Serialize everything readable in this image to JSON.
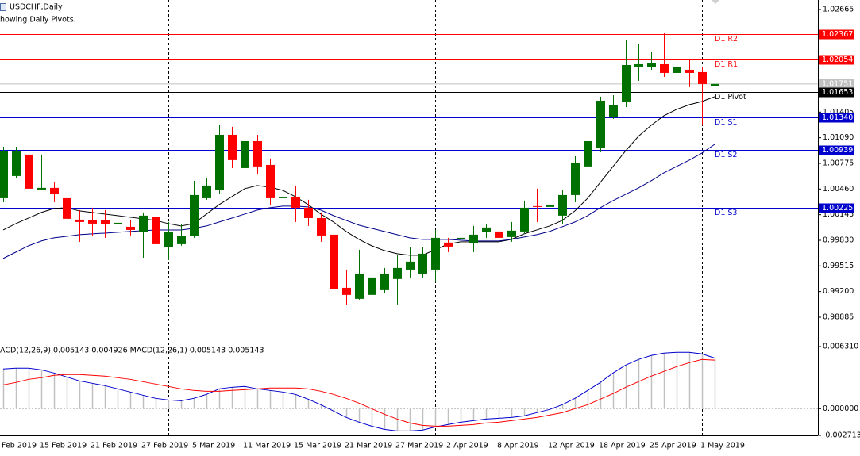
{
  "chart_data": [
    {
      "type": "candlestick",
      "title": "USDCHF,Daily",
      "subtitle": "howing Daily Pivots.",
      "categories": [
        "Feb 2019",
        null,
        null,
        "15 Feb 2019",
        null,
        null,
        null,
        "21 Feb 2019",
        null,
        null,
        null,
        "27 Feb 2019",
        null,
        null,
        null,
        "5 Mar 2019",
        null,
        null,
        null,
        "11 Mar 2019",
        null,
        null,
        null,
        "15 Mar 2019",
        null,
        null,
        null,
        "21 Mar 2019",
        null,
        null,
        null,
        "27 Mar 2019",
        null,
        null,
        null,
        "2 Apr 2019",
        null,
        null,
        null,
        "8 Apr 2019",
        null,
        null,
        null,
        "12 Apr 2019",
        null,
        null,
        null,
        "18 Apr 2019",
        null,
        null,
        null,
        "25 Apr 2019",
        null,
        null,
        null,
        "1 May 2019",
        null
      ],
      "open": [
        1.00347,
        1.0062,
        1.00883,
        1.00454,
        1.00474,
        1.00347,
        1.00084,
        1.00074,
        1.00074,
        1.00026,
        0.99996,
        0.99928,
        1.00113,
        0.99743,
        0.99782,
        0.99879,
        1.00347,
        1.00444,
        1.01126,
        1.00717,
        1.01048,
        1.00756,
        1.00347,
        1.00366,
        1.0023,
        1.00103,
        0.99899,
        0.99246,
        0.9911,
        0.99159,
        0.99217,
        0.99354,
        0.9947,
        0.99412,
        0.9947,
        0.99802,
        0.99841,
        0.99792,
        0.99928,
        0.99938,
        0.9987,
        0.99938,
        1.0025,
        1.0024,
        1.00133,
        1.00386,
        1.00737,
        1.00961,
        1.0134,
        1.01535,
        1.01964,
        1.01954,
        1.01993,
        1.01886,
        1.01925,
        1.01896,
        1.0172
      ],
      "high": [
        1.0098,
        1.0098,
        1.0097,
        1.00883,
        1.00542,
        1.0059,
        1.00201,
        1.0023,
        1.00201,
        1.00172,
        1.00074,
        1.00172,
        1.00201,
        1.00055,
        1.00026,
        1.00561,
        1.0059,
        1.01243,
        1.01224,
        1.01243,
        1.01126,
        1.00834,
        1.00464,
        1.00493,
        1.00328,
        1.00172,
        0.99957,
        0.9947,
        0.99714,
        0.9947,
        0.9949,
        0.99646,
        0.99743,
        0.99743,
        0.99957,
        0.9986,
        0.99938,
        1.00006,
        1.00035,
        1.00016,
        1.00055,
        1.00318,
        1.00464,
        1.00425,
        1.00444,
        1.00863,
        1.01107,
        1.01594,
        1.01613,
        1.02295,
        1.02246,
        1.02149,
        1.02373,
        1.02139,
        1.02042,
        1.01964,
        1.01808
      ],
      "low": [
        1.00298,
        1.0059,
        1.00444,
        1.00444,
        1.00298,
        1.00006,
        0.99811,
        0.99879,
        0.9986,
        0.9986,
        0.99889,
        0.99616,
        0.99256,
        0.99587,
        0.99763,
        0.9986,
        1.00328,
        1.00396,
        1.00717,
        1.00659,
        1.00639,
        1.00269,
        1.00269,
        1.00055,
        1.00006,
        0.99811,
        0.98935,
        0.99032,
        0.991,
        0.991,
        0.99178,
        0.99042,
        0.99373,
        0.99373,
        0.99324,
        0.99685,
        0.99568,
        0.99685,
        0.9986,
        0.99811,
        0.99811,
        0.99909,
        1.00055,
        1.00103,
        1.00035,
        1.00298,
        1.00688,
        1.00912,
        1.01321,
        1.01467,
        1.01789,
        1.01925,
        1.01837,
        1.01808,
        1.01711,
        1.01253,
        1.01711
      ],
      "close": [
        1.00931,
        1.00931,
        1.00464,
        1.00474,
        1.00396,
        1.00094,
        1.00055,
        1.00035,
        1.00026,
        1.00045,
        0.99957,
        1.00133,
        0.99782,
        0.99928,
        0.99879,
        1.00386,
        1.00503,
        1.01126,
        1.00815,
        1.01048,
        1.00737,
        1.00347,
        1.00366,
        1.0023,
        1.00103,
        0.99889,
        0.99227,
        0.99159,
        0.99412,
        0.99373,
        0.99412,
        0.9949,
        0.99568,
        0.99665,
        0.9986,
        0.99753,
        0.9986,
        0.99899,
        0.99987,
        0.9986,
        0.99948,
        1.0023,
        1.0024,
        1.00269,
        1.00386,
        1.00776,
        1.01048,
        1.01545,
        1.01487,
        1.01983,
        1.01993,
        1.02003,
        1.01886,
        1.01964,
        1.01886,
        1.0175,
        1.01751
      ],
      "up_color": "#007000",
      "down_color": "#ff0000",
      "series": [
        {
          "color": "#000000",
          "values": [
            0.99957,
            1.00035,
            1.00103,
            1.00172,
            1.00221,
            1.0023,
            1.00191,
            1.00172,
            1.00152,
            1.00133,
            1.00113,
            1.00094,
            1.00074,
            1.00035,
            1.00006,
            1.00035,
            1.00152,
            1.00269,
            1.00366,
            1.00464,
            1.00503,
            1.00483,
            1.00444,
            1.00366,
            1.00269,
            1.00152,
            1.00055,
            0.99938,
            0.99841,
            0.99763,
            0.99704,
            0.99665,
            0.99646,
            0.99646,
            0.99714,
            0.99782,
            0.99811,
            0.99811,
            0.99811,
            0.99811,
            0.99841,
            0.99909,
            0.99957,
            1.00006,
            1.00074,
            1.00191,
            1.00347,
            1.00542,
            1.00737,
            1.00931,
            1.01107,
            1.01243,
            1.0136,
            1.01438,
            1.01496,
            1.01535,
            1.01594
          ]
        },
        {
          "color": "#00008b",
          "values": [
            0.99607,
            0.99685,
            0.99763,
            0.99821,
            0.9986,
            0.99879,
            0.99899,
            0.99909,
            0.99918,
            0.99928,
            0.99938,
            0.99948,
            0.99957,
            0.99957,
            0.99957,
            0.99977,
            1.00006,
            1.00055,
            1.00103,
            1.00152,
            1.00201,
            1.0023,
            1.0025,
            1.0025,
            1.0024,
            1.00201,
            1.00133,
            1.00074,
            1.00016,
            0.99977,
            0.99938,
            0.99899,
            0.9986,
            0.99841,
            0.99841,
            0.99841,
            0.99831,
            0.99821,
            0.99821,
            0.99821,
            0.99841,
            0.9987,
            0.99899,
            0.99938,
            0.99996,
            1.00055,
            1.00133,
            1.0023,
            1.00318,
            1.00396,
            1.00474,
            1.00561,
            1.00659,
            1.00737,
            1.00815,
            1.00902,
            1.01009
          ]
        }
      ],
      "levels": [
        {
          "name": "D1 R2",
          "value": 1.02367,
          "color": "#ff0000"
        },
        {
          "name": "D1 R1",
          "value": 1.02054,
          "color": "#ff0000"
        },
        {
          "name": "D1 Pivot",
          "value": 1.01653,
          "color": "#000000"
        },
        {
          "name": "D1 S1",
          "value": 1.0134,
          "value_label": "1.01340",
          "color": "#0000cd"
        },
        {
          "name": "D1 S2",
          "value": 1.00939,
          "color": "#0000cd"
        },
        {
          "name": "D1 S3",
          "value": 1.00225,
          "color": "#0000cd"
        }
      ],
      "last_price": 1.01751,
      "last_price_color": "#c0c0c0",
      "period_separators": [
        13,
        34,
        55
      ],
      "ylim": [
        0.98573,
        1.02782
      ],
      "yticks": [
        1.02665,
        1.01405,
        {
          "value": 1.0109,
          "label": "1.01090"
        },
        1.00775,
        {
          "value": 1.0046,
          "label": "1.00460"
        },
        1.00145,
        {
          "value": 0.9983,
          "label": "0.99830"
        },
        0.99515,
        {
          "value": 0.992,
          "label": "0.99200"
        },
        0.98885
      ]
    },
    {
      "type": "macd",
      "title": "ACD(12,26,9) 0.005143 0.004926 MACD(12,26,1) 0.005143 0.005143",
      "series": [
        {
          "color": "#0000cd",
          "bar_color": "#c0c0c0",
          "values": [
            0.00403,
            0.004111,
            0.004111,
            0.003949,
            0.003627,
            0.003224,
            0.002821,
            0.002579,
            0.002337,
            0.002015,
            0.001693,
            0.00137,
            0.001048,
            0.000887,
            0.000806,
            0.001048,
            0.001451,
            0.002015,
            0.002176,
            0.002257,
            0.002015,
            0.001854,
            0.001693,
            0.001451,
            0.000967,
            0.000403,
            -0.000242,
            -0.000887,
            -0.00137,
            -0.001773,
            -0.002096,
            -0.002257,
            -0.002257,
            -0.002176,
            -0.001854,
            -0.001612,
            -0.00137,
            -0.001209,
            -0.001048,
            -0.000967,
            -0.000887,
            -0.000725,
            -0.000403,
            -8.1e-05,
            0.000403,
            0.001048,
            0.001854,
            0.00266,
            0.003627,
            0.004433,
            0.004997,
            0.0054,
            0.005642,
            0.005723,
            0.005723,
            0.005561,
            0.005143
          ]
        },
        {
          "color": "#ff0000",
          "values": [
            0.002418,
            0.00266,
            0.002982,
            0.003143,
            0.003385,
            0.003466,
            0.003466,
            0.003385,
            0.003305,
            0.003143,
            0.002982,
            0.00274,
            0.002499,
            0.002257,
            0.002015,
            0.001854,
            0.001773,
            0.001773,
            0.001854,
            0.001934,
            0.002015,
            0.002096,
            0.002096,
            0.002096,
            0.002015,
            0.001773,
            0.001451,
            0.001048,
            0.000564,
            0,
            -0.000564,
            -0.001048,
            -0.001451,
            -0.001693,
            -0.001773,
            -0.001773,
            -0.001693,
            -0.001612,
            -0.001451,
            -0.00137,
            -0.001209,
            -0.001048,
            -0.000887,
            -0.000645,
            -0.000403,
            0,
            0.000403,
            0.000967,
            0.001531,
            0.002176,
            0.00274,
            0.003305,
            0.003788,
            0.004272,
            0.004675,
            0.004997,
            0.004926
          ]
        }
      ],
      "ylim": [
        -0.002713,
        0.00631
      ],
      "yticks": [
        {
          "value": 0.00631,
          "label": "0.006310"
        },
        {
          "value": 0,
          "label": "0.000000"
        },
        -0.002713
      ]
    }
  ]
}
